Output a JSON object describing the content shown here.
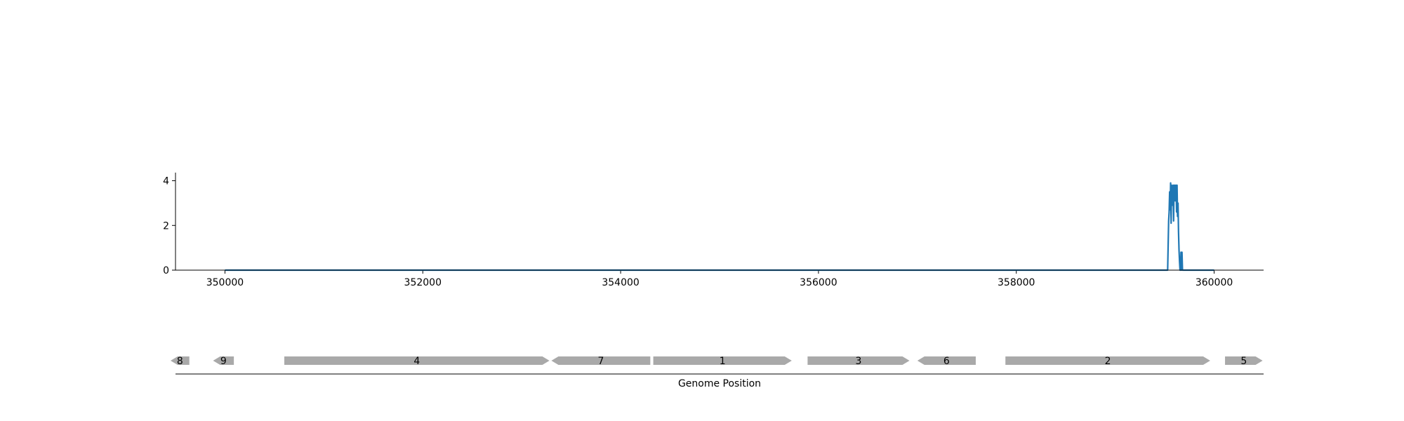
{
  "chart_data": [
    {
      "type": "line",
      "title": "",
      "xlabel": "",
      "ylabel": "",
      "xlim": [
        349500,
        360500
      ],
      "ylim": [
        0,
        4.3
      ],
      "xticks": [
        350000,
        352000,
        354000,
        356000,
        358000,
        360000
      ],
      "xtick_labels": [
        "350000",
        "352000",
        "354000",
        "356000",
        "358000",
        "360000"
      ],
      "yticks": [
        0,
        2,
        4
      ],
      "ytick_labels": [
        "0",
        "2",
        "4"
      ],
      "grid": false,
      "line_color": "#1f77b4",
      "series": [
        {
          "x": [
            350000,
            359500,
            359530,
            359535,
            359540,
            359545,
            359550,
            359555,
            359560,
            359565,
            359570,
            359575,
            359580,
            359585,
            359590,
            359595,
            359600,
            359605,
            359610,
            359615,
            359620,
            359625,
            359630,
            359635,
            359640,
            359645,
            359650,
            359655,
            359660,
            359665,
            359670,
            359675,
            359680,
            359685,
            359690,
            359695,
            359700,
            359705,
            359710,
            359715,
            359720,
            360000
          ],
          "y": [
            0,
            0,
            0,
            1.1,
            2.2,
            2.6,
            3.5,
            2.7,
            3.9,
            2.1,
            3.8,
            2.9,
            3.5,
            3.8,
            2.2,
            3.8,
            3.1,
            3.8,
            3.1,
            3.8,
            2.6,
            3.8,
            2.4,
            3.0,
            1.7,
            0.9,
            0.4,
            0,
            0,
            0.8,
            0,
            0.8,
            0,
            0,
            0,
            0,
            0,
            0,
            0,
            0,
            0,
            0
          ]
        }
      ]
    },
    {
      "type": "gene-map",
      "xlabel": "Genome Position",
      "gene_color": "#a9a9a9",
      "genes": [
        {
          "label": "8",
          "start": 349450,
          "end": 349640,
          "strand": "-"
        },
        {
          "label": "9",
          "start": 349880,
          "end": 350090,
          "strand": "-"
        },
        {
          "label": "4",
          "start": 350600,
          "end": 353280,
          "strand": "+"
        },
        {
          "label": "7",
          "start": 353300,
          "end": 354300,
          "strand": "-"
        },
        {
          "label": "1",
          "start": 354330,
          "end": 355730,
          "strand": "+"
        },
        {
          "label": "3",
          "start": 355890,
          "end": 356920,
          "strand": "+"
        },
        {
          "label": "6",
          "start": 357000,
          "end": 357590,
          "strand": "-"
        },
        {
          "label": "2",
          "start": 357890,
          "end": 359960,
          "strand": "+"
        },
        {
          "label": "5",
          "start": 360110,
          "end": 360490,
          "strand": "+"
        }
      ]
    }
  ]
}
